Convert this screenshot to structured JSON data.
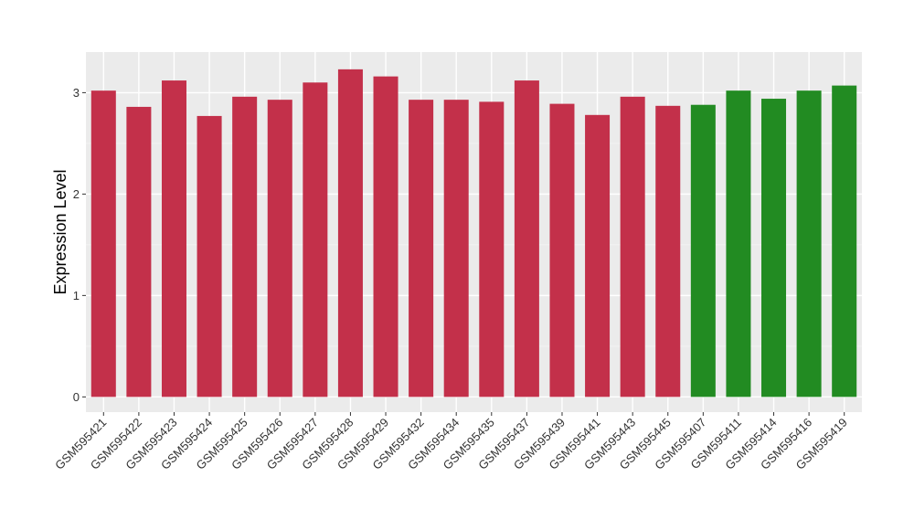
{
  "chart_data": {
    "type": "bar",
    "title": "",
    "xlabel": "",
    "ylabel": "Expression Level",
    "ylim": [
      -0.15,
      3.4
    ],
    "yticks": [
      0,
      1,
      2,
      3
    ],
    "grid": true,
    "legend": "none",
    "categories": [
      "GSM595421",
      "GSM595422",
      "GSM595423",
      "GSM595424",
      "GSM595425",
      "GSM595426",
      "GSM595427",
      "GSM595428",
      "GSM595429",
      "GSM595432",
      "GSM595434",
      "GSM595435",
      "GSM595437",
      "GSM595439",
      "GSM595441",
      "GSM595443",
      "GSM595445",
      "GSM595407",
      "GSM595411",
      "GSM595414",
      "GSM595416",
      "GSM595419"
    ],
    "values": [
      3.02,
      2.86,
      3.12,
      2.77,
      2.96,
      2.93,
      3.1,
      3.23,
      3.16,
      2.93,
      2.93,
      2.91,
      3.12,
      2.89,
      2.78,
      2.96,
      2.87,
      2.88,
      3.02,
      2.94,
      3.02,
      3.07
    ],
    "groups": [
      "red",
      "red",
      "red",
      "red",
      "red",
      "red",
      "red",
      "red",
      "red",
      "red",
      "red",
      "red",
      "red",
      "red",
      "red",
      "red",
      "red",
      "green",
      "green",
      "green",
      "green",
      "green"
    ],
    "colors": {
      "red": "#C3304A",
      "green": "#228B22",
      "panel": "#EBEBEB",
      "grid_major": "#FFFFFF",
      "grid_minor": "#F5F5F5"
    }
  }
}
